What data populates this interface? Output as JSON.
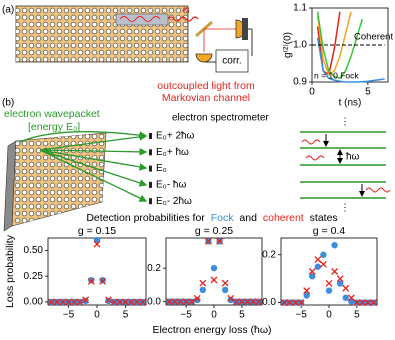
{
  "panel_a": {
    "label": "(a)",
    "kappa": "κᵢ",
    "corr": "corr.",
    "caption": [
      "outcoupled light from",
      "Markovian channel"
    ]
  },
  "panel_b": {
    "label": "(b)",
    "wavepacket": [
      "electron wavepacket",
      "[energy E₀]"
    ],
    "spectrometer": "electron spectrometer",
    "energies": [
      "E₀+ 2ħω",
      "E₀+ ħω",
      "E₀",
      "E₀- ħω",
      "E₀- 2ħω"
    ],
    "spacing": "ħω",
    "ellipsis": "⋮",
    "title_parts": [
      "Detection probabilities for",
      "Fock",
      "and",
      "coherent",
      "states"
    ]
  },
  "chart_data": [
    {
      "type": "line",
      "x": [
        0,
        0.5,
        1,
        1.5,
        2,
        2.5,
        3,
        3.5,
        4,
        4.5,
        5,
        5.5,
        6,
        6.5
      ],
      "xlim": [
        0,
        6.8
      ],
      "xticks": [
        0,
        5
      ],
      "ylim": [
        0.9,
        1.1
      ],
      "yticks": [
        0.9,
        {
          "value": 1,
          "label": "1.0"
        },
        1.1
      ],
      "x_label": "t (ns)",
      "y_label": "g⁽²⁾(0)",
      "annotation": "n = 10 Fock",
      "series": [
        {
          "color": "#e8221b",
          "values": [
            null,
            1.05,
            0.93,
            0.92,
            0.99,
            1.09,
            null,
            null,
            null,
            null,
            null,
            null,
            null,
            null
          ]
        },
        {
          "color": "#f5a623",
          "values": [
            null,
            1.08,
            0.96,
            0.92,
            0.93,
            0.97,
            1.03,
            1.09,
            null,
            null,
            null,
            null,
            null,
            null
          ]
        },
        {
          "color": "#3cc43c",
          "values": [
            null,
            1.09,
            0.99,
            0.93,
            0.915,
            0.91,
            0.93,
            0.97,
            1.02,
            1.07,
            null,
            null,
            null,
            null
          ]
        },
        {
          "color": "#3b8ee0",
          "values": [
            null,
            1.02,
            0.93,
            0.91,
            0.905,
            0.902,
            0.9,
            0.9,
            0.9,
            0.901,
            0.902,
            0.904,
            0.906,
            0.908
          ]
        },
        {
          "name": "Coherent",
          "color": "#000000",
          "dash": true,
          "values": [
            1,
            1,
            1,
            1,
            1,
            1,
            1,
            1,
            1,
            1,
            1,
            1,
            1,
            1
          ]
        }
      ]
    },
    {
      "type": "scatter",
      "title": "g = 0.15",
      "x": [
        -8,
        -7,
        -6,
        -5,
        -4,
        -3,
        -2,
        -1,
        0,
        1,
        2,
        3,
        4,
        5,
        6,
        7,
        8
      ],
      "xlim": [
        -8.6,
        8.6
      ],
      "xticks": [
        {
          "value": -5,
          "label": "−5"
        },
        0,
        5
      ],
      "ylim": [
        -0.03,
        0.62
      ],
      "yticks": [
        {
          "value": 0,
          "label": "0.00"
        },
        0.25,
        {
          "value": 0.5,
          "label": "0.50"
        }
      ],
      "x_label": "Electron energy loss (ħω)",
      "y_label": "Loss probability",
      "series": [
        {
          "color": "#3b8ee0",
          "marker": "circle",
          "values": [
            0,
            0,
            0,
            0,
            0,
            0,
            0.01,
            0.21,
            0.6,
            0.21,
            0.01,
            0,
            0,
            0,
            0,
            0,
            0
          ]
        },
        {
          "color": "#e8221b",
          "marker": "x",
          "values": [
            0,
            0,
            0,
            0,
            0,
            0,
            0.02,
            0.2,
            0.56,
            0.2,
            0.02,
            0,
            0,
            0,
            0,
            0,
            0
          ]
        }
      ]
    },
    {
      "type": "scatter",
      "title": "g = 0.25",
      "x": [
        -8,
        -7,
        -6,
        -5,
        -4,
        -3,
        -2,
        -1,
        0,
        1,
        2,
        3,
        4,
        5,
        6,
        7,
        8
      ],
      "xlim": [
        -8.6,
        8.6
      ],
      "xticks": [
        {
          "value": -5,
          "label": "−5"
        },
        0,
        5
      ],
      "ylim": [
        -0.02,
        0.38
      ],
      "yticks": [
        {
          "value": 0,
          "label": "0.0"
        },
        0.2
      ],
      "series": [
        {
          "color": "#3b8ee0",
          "marker": "circle",
          "values": [
            0,
            0,
            0,
            0,
            0,
            0.01,
            0.07,
            0.36,
            0.2,
            0.36,
            0.07,
            0.01,
            0,
            0,
            0,
            0,
            0
          ]
        },
        {
          "color": "#e8221b",
          "marker": "x",
          "values": [
            0,
            0,
            0,
            0,
            0,
            0.02,
            0.11,
            0.36,
            0.13,
            0.36,
            0.11,
            0.02,
            0,
            0,
            0,
            0,
            0
          ]
        }
      ]
    },
    {
      "type": "scatter",
      "title": "g = 0.4",
      "x": [
        -8,
        -7,
        -6,
        -5,
        -4,
        -3,
        -2,
        -1,
        0,
        1,
        2,
        3,
        4,
        5,
        6,
        7,
        8
      ],
      "xlim": [
        -8.6,
        8.6
      ],
      "xticks": [
        {
          "value": -5,
          "label": "−5"
        },
        0,
        5
      ],
      "ylim": [
        -0.01,
        0.27
      ],
      "yticks": [
        {
          "value": 0,
          "label": "0.0"
        },
        0.2
      ],
      "series": [
        {
          "color": "#3b8ee0",
          "marker": "circle",
          "values": [
            0,
            0,
            0,
            0,
            0.03,
            0.11,
            0.15,
            0.2,
            0.05,
            0.24,
            0.08,
            0.02,
            0.005,
            0,
            0,
            0,
            0
          ]
        },
        {
          "color": "#e8221b",
          "marker": "x",
          "values": [
            0,
            0,
            0,
            0,
            0.05,
            0.13,
            0.18,
            0.16,
            0.08,
            0.13,
            0.1,
            0.06,
            0.02,
            0,
            0,
            0,
            0
          ]
        }
      ]
    }
  ]
}
